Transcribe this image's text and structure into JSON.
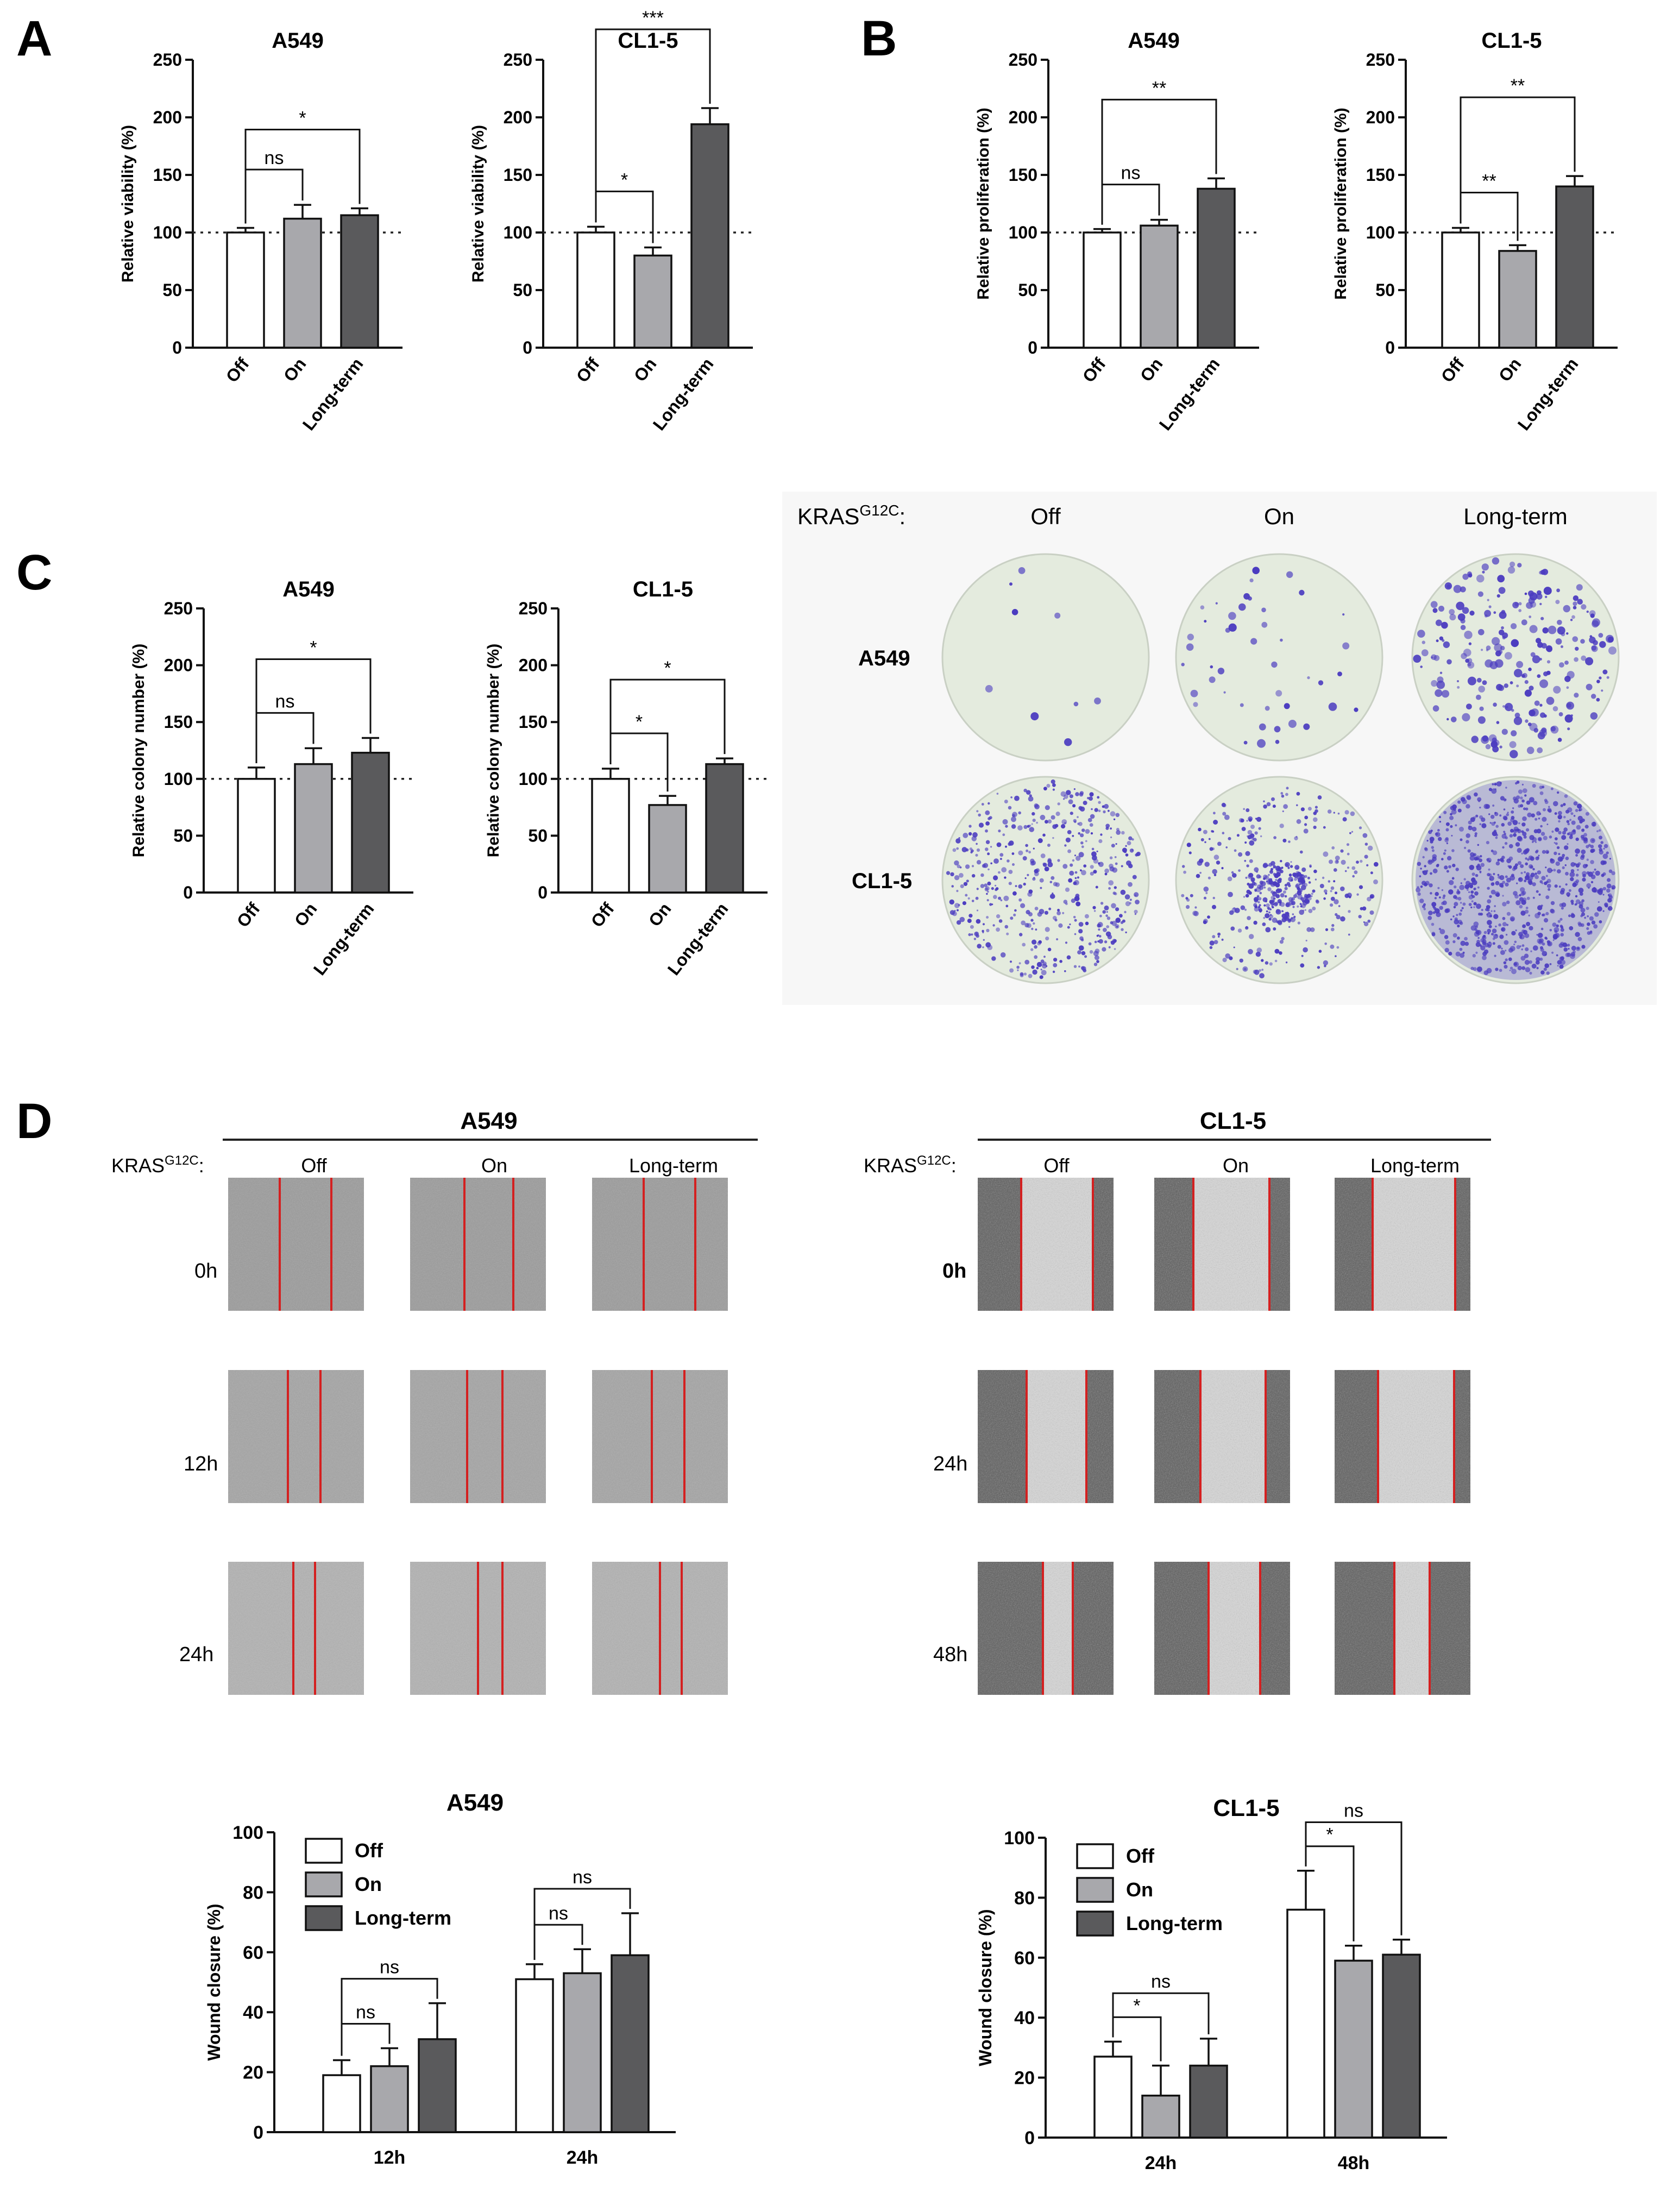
{
  "panel_letters": [
    "A",
    "B",
    "C",
    "D"
  ],
  "colors": {
    "off": "#ffffff",
    "on": "#a8a8ac",
    "long": "#5a5a5c",
    "red_line": "#d42020",
    "stain": "#4b3cc0",
    "plate_bg": "#e4ebde"
  },
  "panelC": {
    "kras_label": "KRAS",
    "kras_sup": "G12C",
    "kras_colon": ":",
    "col_headers": [
      "Off",
      "On",
      "Long-term"
    ],
    "row_labels": [
      "A549",
      "CL1-5"
    ]
  },
  "panelD": {
    "left": {
      "title": "A549",
      "kras_label": "KRAS",
      "kras_sup": "G12C",
      "kras_colon": ":",
      "col_headers": [
        "Off",
        "On",
        "Long-term"
      ],
      "row_labels": [
        "0h",
        "12h",
        "24h"
      ]
    },
    "right": {
      "title": "CL1-5",
      "kras_label": "KRAS",
      "kras_sup": "G12C",
      "kras_colon": ":",
      "col_headers": [
        "Off",
        "On",
        "Long-term"
      ],
      "row_labels": [
        "0h",
        "24h",
        "48h"
      ]
    }
  },
  "chart_data": [
    {
      "id": "a1",
      "type": "bar",
      "title": "A549",
      "ylabel": "Relative viability (%)",
      "xlabel": "",
      "ylim": [
        0,
        250
      ],
      "yticks": [
        0,
        50,
        100,
        150,
        200,
        250
      ],
      "categories": [
        "Off",
        "On",
        "Long-term"
      ],
      "values": [
        100,
        112,
        115
      ],
      "errors": [
        4,
        12,
        6
      ],
      "reference_line": 100,
      "sig": [
        {
          "from": 0,
          "to": 1,
          "label": "ns"
        },
        {
          "from": 0,
          "to": 2,
          "label": "*"
        }
      ]
    },
    {
      "id": "a2",
      "type": "bar",
      "title": "CL1-5",
      "ylabel": "Relative viability (%)",
      "xlabel": "",
      "ylim": [
        0,
        250
      ],
      "yticks": [
        0,
        50,
        100,
        150,
        200,
        250
      ],
      "categories": [
        "Off",
        "On",
        "Long-term"
      ],
      "values": [
        100,
        80,
        194
      ],
      "errors": [
        5,
        7,
        14
      ],
      "reference_line": 100,
      "sig": [
        {
          "from": 0,
          "to": 1,
          "label": "*"
        },
        {
          "from": 0,
          "to": 2,
          "label": "***"
        }
      ]
    },
    {
      "id": "b1",
      "type": "bar",
      "title": "A549",
      "ylabel": "Relative proliferation (%)",
      "xlabel": "",
      "ylim": [
        0,
        250
      ],
      "yticks": [
        0,
        50,
        100,
        150,
        200,
        250
      ],
      "categories": [
        "Off",
        "On",
        "Long-term"
      ],
      "values": [
        100,
        106,
        138
      ],
      "errors": [
        3,
        5,
        9
      ],
      "reference_line": 100,
      "sig": [
        {
          "from": 0,
          "to": 1,
          "label": "ns"
        },
        {
          "from": 0,
          "to": 2,
          "label": "**"
        }
      ]
    },
    {
      "id": "b2",
      "type": "bar",
      "title": "CL1-5",
      "ylabel": "Relative proliferation (%)",
      "xlabel": "",
      "ylim": [
        0,
        250
      ],
      "yticks": [
        0,
        50,
        100,
        150,
        200,
        250
      ],
      "categories": [
        "Off",
        "On",
        "Long-term"
      ],
      "values": [
        100,
        84,
        140
      ],
      "errors": [
        4,
        5,
        9
      ],
      "reference_line": 100,
      "sig": [
        {
          "from": 0,
          "to": 1,
          "label": "**"
        },
        {
          "from": 0,
          "to": 2,
          "label": "**"
        }
      ]
    },
    {
      "id": "c1",
      "type": "bar",
      "title": "A549",
      "ylabel": "Relative colony number (%)",
      "xlabel": "",
      "ylim": [
        0,
        250
      ],
      "yticks": [
        0,
        50,
        100,
        150,
        200,
        250
      ],
      "categories": [
        "Off",
        "On",
        "Long-term"
      ],
      "values": [
        100,
        113,
        123
      ],
      "errors": [
        10,
        14,
        13
      ],
      "reference_line": 100,
      "sig": [
        {
          "from": 0,
          "to": 1,
          "label": "ns"
        },
        {
          "from": 0,
          "to": 2,
          "label": "*"
        }
      ]
    },
    {
      "id": "c2",
      "type": "bar",
      "title": "CL1-5",
      "ylabel": "Relative colony number (%)",
      "xlabel": "",
      "ylim": [
        0,
        250
      ],
      "yticks": [
        0,
        50,
        100,
        150,
        200,
        250
      ],
      "categories": [
        "Off",
        "On",
        "Long-term"
      ],
      "values": [
        100,
        77,
        113
      ],
      "errors": [
        9,
        8,
        5
      ],
      "reference_line": 100,
      "sig": [
        {
          "from": 0,
          "to": 1,
          "label": "*"
        },
        {
          "from": 0,
          "to": 2,
          "label": "*"
        }
      ]
    },
    {
      "id": "d1",
      "type": "bar",
      "title": "A549",
      "ylabel": "Wound closure (%)",
      "xlabel": "",
      "ylim": [
        0,
        100
      ],
      "yticks": [
        0,
        20,
        40,
        60,
        80,
        100
      ],
      "categories": [
        "12h",
        "24h"
      ],
      "legend_position": "top-left",
      "series": [
        {
          "name": "Off",
          "values": [
            19,
            51
          ],
          "errors": [
            5,
            5
          ]
        },
        {
          "name": "On",
          "values": [
            22,
            53
          ],
          "errors": [
            6,
            8
          ]
        },
        {
          "name": "Long-term",
          "values": [
            31,
            59
          ],
          "errors": [
            12,
            14
          ]
        }
      ],
      "sig": [
        {
          "group": 0,
          "from": 0,
          "to": 1,
          "label": "ns"
        },
        {
          "group": 0,
          "from": 0,
          "to": 2,
          "label": "ns"
        },
        {
          "group": 1,
          "from": 0,
          "to": 1,
          "label": "ns"
        },
        {
          "group": 1,
          "from": 0,
          "to": 2,
          "label": "ns"
        }
      ]
    },
    {
      "id": "d2",
      "type": "bar",
      "title": "CL1-5",
      "ylabel": "Wound closure (%)",
      "xlabel": "",
      "ylim": [
        0,
        100
      ],
      "yticks": [
        0,
        20,
        40,
        60,
        80,
        100
      ],
      "categories": [
        "24h",
        "48h"
      ],
      "legend_position": "top-left",
      "series": [
        {
          "name": "Off",
          "values": [
            27,
            76
          ],
          "errors": [
            5,
            13
          ]
        },
        {
          "name": "On",
          "values": [
            14,
            59
          ],
          "errors": [
            10,
            5
          ]
        },
        {
          "name": "Long-term",
          "values": [
            24,
            61
          ],
          "errors": [
            9,
            5
          ]
        }
      ],
      "sig": [
        {
          "group": 0,
          "from": 0,
          "to": 1,
          "label": "*"
        },
        {
          "group": 0,
          "from": 0,
          "to": 2,
          "label": "ns"
        },
        {
          "group": 1,
          "from": 0,
          "to": 1,
          "label": "*"
        },
        {
          "group": 1,
          "from": 0,
          "to": 2,
          "label": "ns"
        }
      ]
    }
  ]
}
